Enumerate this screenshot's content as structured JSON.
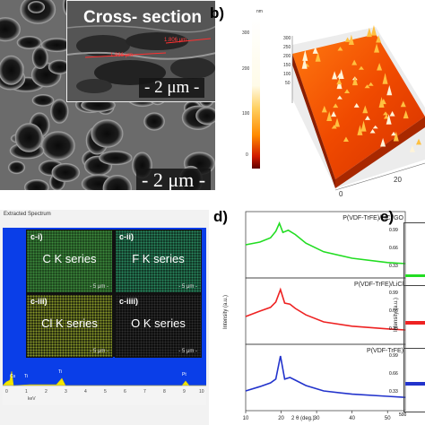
{
  "panel_a": {
    "inset_title": "Cross- section",
    "inset_measure_1": "1.806 μm",
    "inset_measure_2": "1.936 μm",
    "inset_scale": "- 2 μm -",
    "main_scale": "- 2 μm -"
  },
  "panel_b": {
    "label": "b)",
    "colorbar_unit": "nm",
    "colorbar_ticks": [
      "300",
      "200",
      "100",
      "0"
    ],
    "surface_axis_ticks": [
      "300",
      "250",
      "200",
      "150",
      "100",
      "50"
    ],
    "x_ticks": [
      "20",
      "0"
    ]
  },
  "panel_c": {
    "title": "Extracted Spectrum",
    "maps": [
      {
        "id": "c-i)",
        "name": "C K series",
        "color": "#2f7a2f",
        "scale": "5 μm"
      },
      {
        "id": "c-ii)",
        "name": "F K series",
        "color": "#1f6a4a",
        "scale": "5 μm"
      },
      {
        "id": "c-iii)",
        "name": "Cl K series",
        "color": "#5c6a1a",
        "scale": "5 μm"
      },
      {
        "id": "c-iiii)",
        "name": "O K series",
        "color": "#141414",
        "scale": "5 μm"
      }
    ],
    "peak_labels": [
      "Cs",
      "Ti",
      "Ti",
      "Pt"
    ],
    "x_ticks": [
      "0",
      "1",
      "2",
      "3",
      "4",
      "5",
      "6",
      "7",
      "8",
      "9",
      "10"
    ],
    "xlabel": "keV"
  },
  "panel_d": {
    "label": "d)",
    "series_labels": [
      "P(VDF-TrFE)/LiCl/GO",
      "P(VDF-TrFE)/LiCl",
      "P(VDF-TrFE)"
    ],
    "series_colors": [
      "#22dd22",
      "#ee2222",
      "#2233cc"
    ],
    "ylabel": "Intensity (a.u.)",
    "xlabel": "2 θ (deg.)",
    "x_ticks": [
      "10",
      "20",
      "30",
      "40",
      "50"
    ]
  },
  "panel_e": {
    "label": "e)",
    "y_ticks_top": [
      "0.99",
      "0.66",
      "0.33"
    ],
    "y_ticks_mid": [
      "0.99",
      "0.66",
      "0.33"
    ],
    "y_ticks_bot": [
      "0.99",
      "0.66",
      "0.33"
    ],
    "ylabel": "Intensity (a.u.)",
    "x_tick": "500"
  },
  "chart_data": [
    {
      "type": "line",
      "title": "",
      "xlabel": "2 θ (deg.)",
      "ylabel": "Intensity (a.u.)",
      "xlim": [
        10,
        55
      ],
      "series": [
        {
          "name": "P(VDF-TrFE)/LiCl/GO",
          "x": [
            10,
            14,
            17,
            18.5,
            19.5,
            20.5,
            22,
            24,
            27,
            32,
            40,
            50,
            55
          ],
          "y": [
            0.55,
            0.6,
            0.68,
            0.8,
            0.95,
            0.78,
            0.82,
            0.74,
            0.58,
            0.42,
            0.3,
            0.22,
            0.2
          ]
        },
        {
          "name": "P(VDF-TrFE)/LiCl",
          "x": [
            10,
            14,
            17,
            18.5,
            19.8,
            21,
            22.5,
            24,
            27,
            32,
            40,
            50,
            55
          ],
          "y": [
            0.45,
            0.55,
            0.62,
            0.72,
            0.95,
            0.7,
            0.68,
            0.6,
            0.48,
            0.35,
            0.27,
            0.22,
            0.2
          ]
        },
        {
          "name": "P(VDF-TrFE)",
          "x": [
            10,
            14,
            17,
            18.5,
            19.8,
            21,
            22.5,
            24,
            27,
            32,
            40,
            50,
            55
          ],
          "y": [
            0.3,
            0.38,
            0.45,
            0.52,
            0.95,
            0.52,
            0.55,
            0.5,
            0.4,
            0.3,
            0.24,
            0.2,
            0.18
          ]
        }
      ]
    }
  ]
}
